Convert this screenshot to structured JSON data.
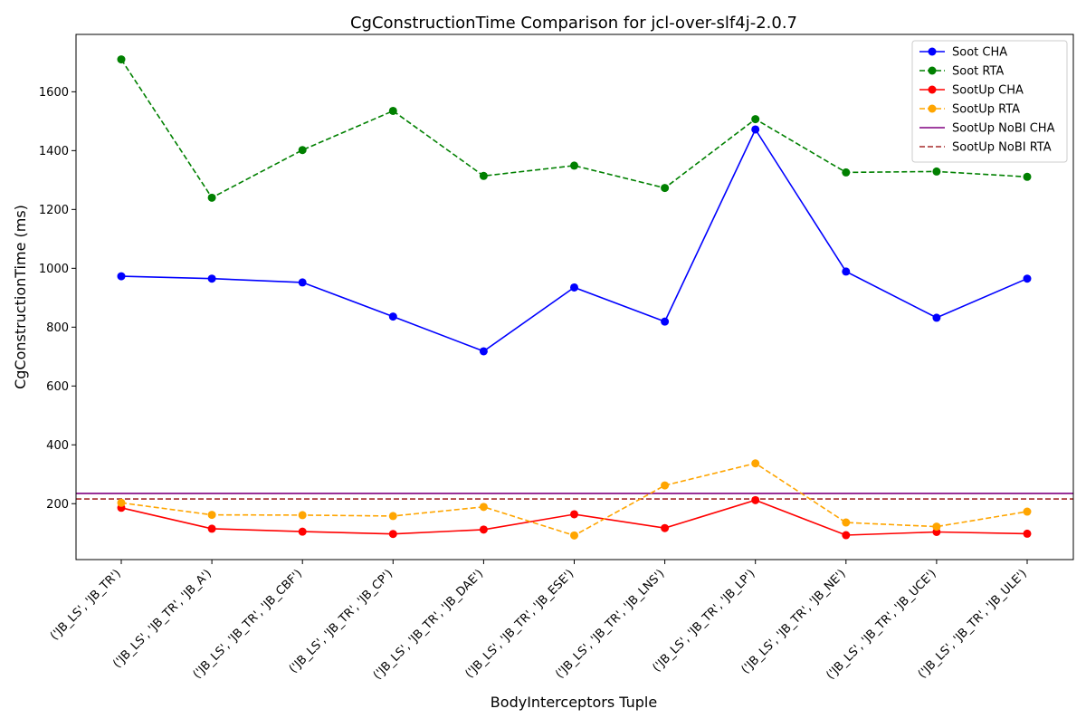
{
  "chart_data": {
    "type": "line",
    "title": "CgConstructionTime Comparison for jcl-over-slf4j-2.0.7",
    "xlabel": "BodyInterceptors Tuple",
    "ylabel": "CgConstructionTime (ms)",
    "ylim": [
      10,
      1795
    ],
    "yticks": [
      200,
      400,
      600,
      800,
      1000,
      1200,
      1400,
      1600
    ],
    "grid": false,
    "legend_position": "top-right",
    "categories": [
      "('JB_LS', 'JB_TR')",
      "('JB_LS', 'JB_TR', 'JB_A')",
      "('JB_LS', 'JB_TR', 'JB_CBF')",
      "('JB_LS', 'JB_TR', 'JB_CP')",
      "('JB_LS', 'JB_TR', 'JB_DAE')",
      "('JB_LS', 'JB_TR', 'JB_ESE')",
      "('JB_LS', 'JB_TR', 'JB_LNS')",
      "('JB_LS', 'JB_TR', 'JB_LP')",
      "('JB_LS', 'JB_TR', 'JB_NE')",
      "('JB_LS', 'JB_TR', 'JB_UCE')",
      "('JB_LS', 'JB_TR', 'JB_ULE')"
    ],
    "series": [
      {
        "name": "Soot CHA",
        "color": "#0000ff",
        "dashed": false,
        "markers": true,
        "values": [
          973,
          965,
          952,
          836,
          718,
          935,
          819,
          1472,
          989,
          832,
          965
        ]
      },
      {
        "name": "Soot RTA",
        "color": "#008000",
        "dashed": true,
        "markers": true,
        "values": [
          1710,
          1240,
          1402,
          1535,
          1314,
          1349,
          1273,
          1507,
          1326,
          1329,
          1311
        ]
      },
      {
        "name": "SootUp CHA",
        "color": "#ff0000",
        "dashed": false,
        "markers": true,
        "values": [
          186,
          115,
          105,
          97,
          112,
          164,
          117,
          212,
          93,
          104,
          98
        ]
      },
      {
        "name": "SootUp RTA",
        "color": "#ffa500",
        "dashed": true,
        "markers": true,
        "values": [
          203,
          162,
          161,
          158,
          189,
          92,
          262,
          337,
          136,
          122,
          173
        ]
      }
    ],
    "hlines": [
      {
        "name": "SootUp NoBI CHA",
        "color": "#800080",
        "dashed": false,
        "value": 235
      },
      {
        "name": "SootUp NoBI RTA",
        "color": "#a52a2a",
        "dashed": true,
        "value": 216
      }
    ]
  }
}
